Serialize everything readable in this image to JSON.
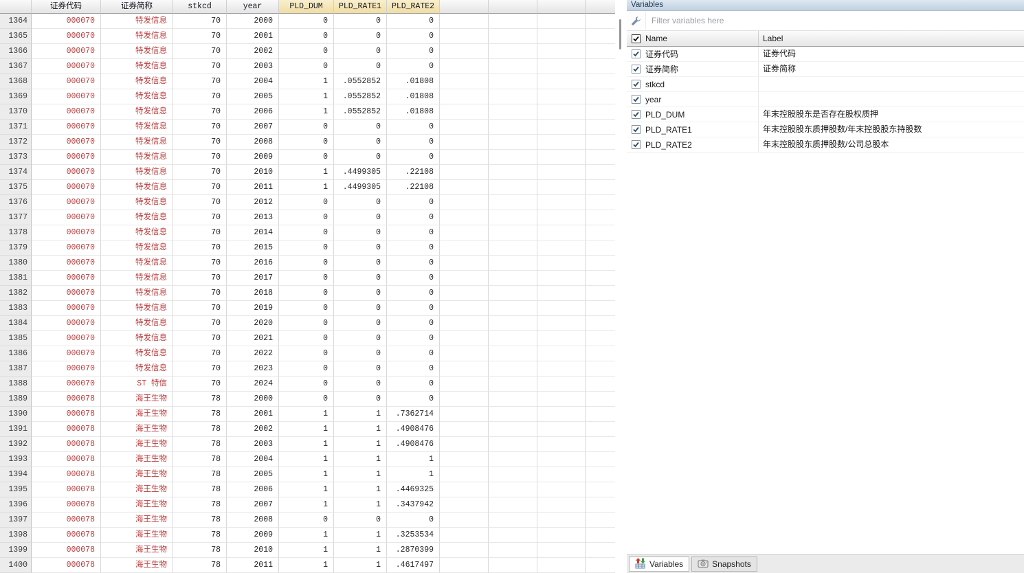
{
  "data_editor": {
    "columns": [
      "证券代码",
      "证券简称",
      "stkcd",
      "year",
      "PLD_DUM",
      "PLD_RATE1",
      "PLD_RATE2"
    ],
    "selected_columns": [
      "PLD_DUM",
      "PLD_RATE1",
      "PLD_RATE2"
    ],
    "string_columns": [
      "证券代码",
      "证券简称"
    ],
    "rows": [
      [
        "1364",
        "000070",
        "特发信息",
        "70",
        "2000",
        "0",
        "0",
        "0"
      ],
      [
        "1365",
        "000070",
        "特发信息",
        "70",
        "2001",
        "0",
        "0",
        "0"
      ],
      [
        "1366",
        "000070",
        "特发信息",
        "70",
        "2002",
        "0",
        "0",
        "0"
      ],
      [
        "1367",
        "000070",
        "特发信息",
        "70",
        "2003",
        "0",
        "0",
        "0"
      ],
      [
        "1368",
        "000070",
        "特发信息",
        "70",
        "2004",
        "1",
        ".0552852",
        ".01808"
      ],
      [
        "1369",
        "000070",
        "特发信息",
        "70",
        "2005",
        "1",
        ".0552852",
        ".01808"
      ],
      [
        "1370",
        "000070",
        "特发信息",
        "70",
        "2006",
        "1",
        ".0552852",
        ".01808"
      ],
      [
        "1371",
        "000070",
        "特发信息",
        "70",
        "2007",
        "0",
        "0",
        "0"
      ],
      [
        "1372",
        "000070",
        "特发信息",
        "70",
        "2008",
        "0",
        "0",
        "0"
      ],
      [
        "1373",
        "000070",
        "特发信息",
        "70",
        "2009",
        "0",
        "0",
        "0"
      ],
      [
        "1374",
        "000070",
        "特发信息",
        "70",
        "2010",
        "1",
        ".4499305",
        ".22108"
      ],
      [
        "1375",
        "000070",
        "特发信息",
        "70",
        "2011",
        "1",
        ".4499305",
        ".22108"
      ],
      [
        "1376",
        "000070",
        "特发信息",
        "70",
        "2012",
        "0",
        "0",
        "0"
      ],
      [
        "1377",
        "000070",
        "特发信息",
        "70",
        "2013",
        "0",
        "0",
        "0"
      ],
      [
        "1378",
        "000070",
        "特发信息",
        "70",
        "2014",
        "0",
        "0",
        "0"
      ],
      [
        "1379",
        "000070",
        "特发信息",
        "70",
        "2015",
        "0",
        "0",
        "0"
      ],
      [
        "1380",
        "000070",
        "特发信息",
        "70",
        "2016",
        "0",
        "0",
        "0"
      ],
      [
        "1381",
        "000070",
        "特发信息",
        "70",
        "2017",
        "0",
        "0",
        "0"
      ],
      [
        "1382",
        "000070",
        "特发信息",
        "70",
        "2018",
        "0",
        "0",
        "0"
      ],
      [
        "1383",
        "000070",
        "特发信息",
        "70",
        "2019",
        "0",
        "0",
        "0"
      ],
      [
        "1384",
        "000070",
        "特发信息",
        "70",
        "2020",
        "0",
        "0",
        "0"
      ],
      [
        "1385",
        "000070",
        "特发信息",
        "70",
        "2021",
        "0",
        "0",
        "0"
      ],
      [
        "1386",
        "000070",
        "特发信息",
        "70",
        "2022",
        "0",
        "0",
        "0"
      ],
      [
        "1387",
        "000070",
        "特发信息",
        "70",
        "2023",
        "0",
        "0",
        "0"
      ],
      [
        "1388",
        "000070",
        "ST 特信",
        "70",
        "2024",
        "0",
        "0",
        "0"
      ],
      [
        "1389",
        "000078",
        "海王生物",
        "78",
        "2000",
        "0",
        "0",
        "0"
      ],
      [
        "1390",
        "000078",
        "海王生物",
        "78",
        "2001",
        "1",
        "1",
        ".7362714"
      ],
      [
        "1391",
        "000078",
        "海王生物",
        "78",
        "2002",
        "1",
        "1",
        ".4908476"
      ],
      [
        "1392",
        "000078",
        "海王生物",
        "78",
        "2003",
        "1",
        "1",
        ".4908476"
      ],
      [
        "1393",
        "000078",
        "海王生物",
        "78",
        "2004",
        "1",
        "1",
        "1"
      ],
      [
        "1394",
        "000078",
        "海王生物",
        "78",
        "2005",
        "1",
        "1",
        "1"
      ],
      [
        "1395",
        "000078",
        "海王生物",
        "78",
        "2006",
        "1",
        "1",
        ".4469325"
      ],
      [
        "1396",
        "000078",
        "海王生物",
        "78",
        "2007",
        "1",
        "1",
        ".3437942"
      ],
      [
        "1397",
        "000078",
        "海王生物",
        "78",
        "2008",
        "0",
        "0",
        "0"
      ],
      [
        "1398",
        "000078",
        "海王生物",
        "78",
        "2009",
        "1",
        "1",
        ".3253534"
      ],
      [
        "1399",
        "000078",
        "海王生物",
        "78",
        "2010",
        "1",
        "1",
        ".2870399"
      ],
      [
        "1400",
        "000078",
        "海王生物",
        "78",
        "2011",
        "1",
        "1",
        ".4617497"
      ]
    ]
  },
  "variables_panel": {
    "title": "Variables",
    "filter_placeholder": "Filter variables here",
    "name_header": "Name",
    "label_header": "Label",
    "header_checkbox_checked": true,
    "variables": [
      {
        "name": "证券代码",
        "label": "证券代码",
        "checked": true
      },
      {
        "name": "证券简称",
        "label": "证券简称",
        "checked": true
      },
      {
        "name": "stkcd",
        "label": "",
        "checked": true
      },
      {
        "name": "year",
        "label": "",
        "checked": true
      },
      {
        "name": "PLD_DUM",
        "label": "年末控股股东是否存在股权质押",
        "checked": true
      },
      {
        "name": "PLD_RATE1",
        "label": "年末控股股东质押股数/年末控股股东持股数",
        "checked": true
      },
      {
        "name": "PLD_RATE2",
        "label": "年末控股股东质押股数/公司总股本",
        "checked": true
      }
    ],
    "tabs": [
      {
        "label": "Variables",
        "active": true
      },
      {
        "label": "Snapshots",
        "active": false
      }
    ]
  },
  "colors": {
    "string_text": "#bb3c3c",
    "selected_header_bg": "#f3e3af",
    "header_bg": "#ededed",
    "panel_titlebar_bg": "#cdd9e6",
    "row_number_bg": "#ececec"
  }
}
